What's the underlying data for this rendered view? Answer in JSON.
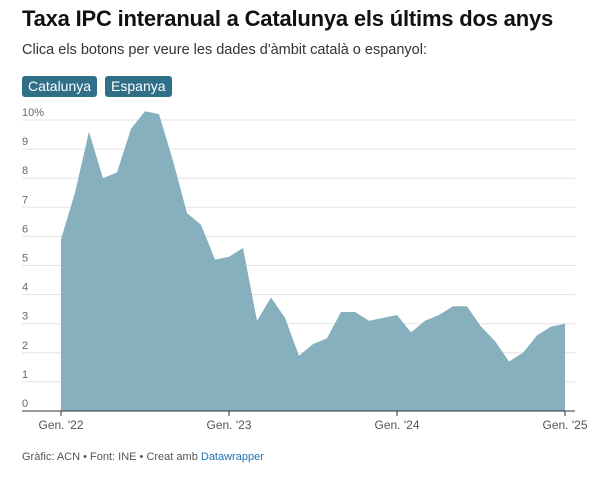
{
  "title": "Taxa IPC interanual a Catalunya els últims dos anys",
  "subtitle": "Clica els botons per veure les dades d'àmbit català o espanyol:",
  "buttons": [
    {
      "label": "Catalunya"
    },
    {
      "label": "Espanya"
    }
  ],
  "footer": {
    "text": "Gràfic: ACN • Font: INE • Creat amb ",
    "link_text": "Datawrapper"
  },
  "colors": {
    "area": "#86b0be",
    "button": "#2f6f87",
    "grid": "#e3e3e3"
  },
  "chart_data": {
    "type": "area",
    "title": "",
    "xlabel": "",
    "ylabel": "",
    "ylim": [
      0,
      10
    ],
    "grid": true,
    "y_ticks": [
      0,
      1,
      2,
      3,
      4,
      5,
      6,
      7,
      8,
      9,
      10
    ],
    "y_tick_labels": [
      "0",
      "1",
      "2",
      "3",
      "4",
      "5",
      "6",
      "7",
      "8",
      "9",
      "10%"
    ],
    "x_tick_labels": [
      "Gen. '22",
      "Gen. '23",
      "Gen. '24",
      "Gen. '25"
    ],
    "x_tick_indices": [
      0,
      12,
      24,
      36
    ],
    "x": [
      "2022-01",
      "2022-02",
      "2022-03",
      "2022-04",
      "2022-05",
      "2022-06",
      "2022-07",
      "2022-08",
      "2022-09",
      "2022-10",
      "2022-11",
      "2022-12",
      "2023-01",
      "2023-02",
      "2023-03",
      "2023-04",
      "2023-05",
      "2023-06",
      "2023-07",
      "2023-08",
      "2023-09",
      "2023-10",
      "2023-11",
      "2023-12",
      "2024-01",
      "2024-02",
      "2024-03",
      "2024-04",
      "2024-05",
      "2024-06",
      "2024-07",
      "2024-08",
      "2024-09",
      "2024-10",
      "2024-11",
      "2024-12",
      "2025-01"
    ],
    "series": [
      {
        "values": [
          5.9,
          7.5,
          9.6,
          8.0,
          8.2,
          9.7,
          10.3,
          10.2,
          8.6,
          6.8,
          6.4,
          5.2,
          5.3,
          5.6,
          3.1,
          3.9,
          3.2,
          1.9,
          2.3,
          2.5,
          3.4,
          3.4,
          3.1,
          3.2,
          3.3,
          2.7,
          3.1,
          3.3,
          3.6,
          3.6,
          2.9,
          2.4,
          1.7,
          2.0,
          2.6,
          2.9,
          3.0
        ]
      }
    ]
  }
}
